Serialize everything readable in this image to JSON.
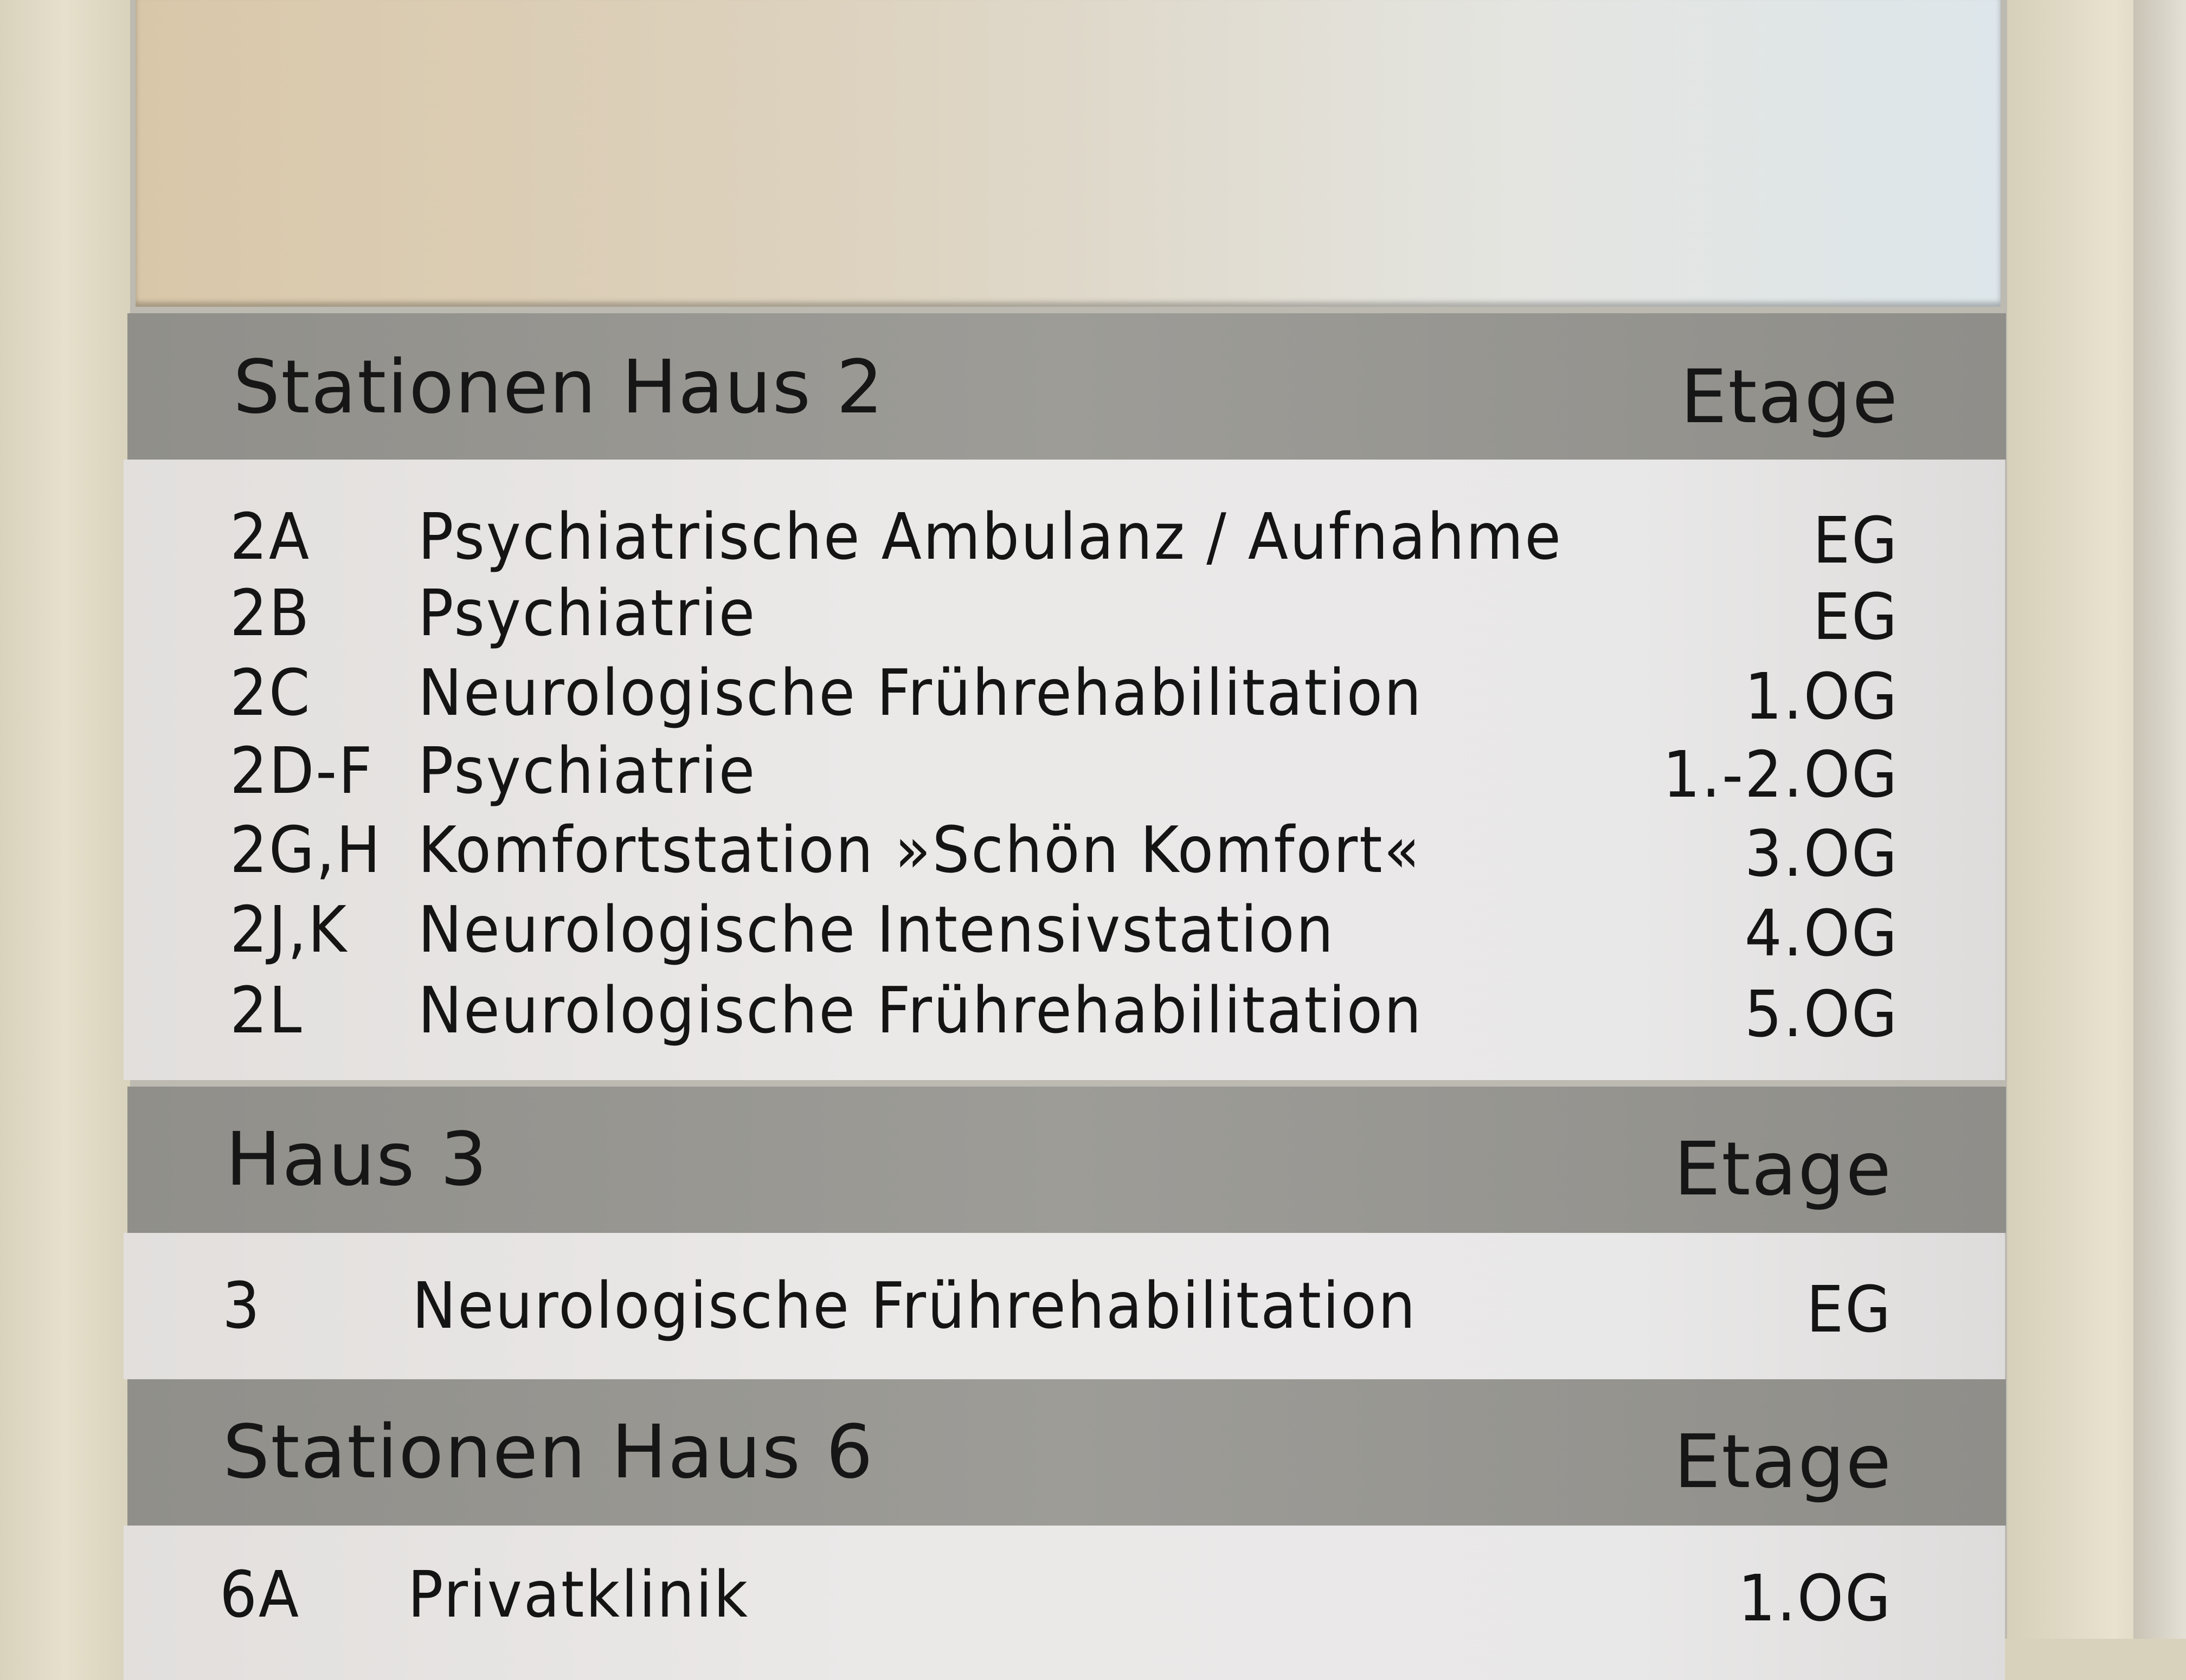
{
  "sections": [
    {
      "title": "Stationen Haus 2",
      "etage_label": "Etage",
      "rows": [
        {
          "code": "2A",
          "name": "Psychiatrische Ambulanz / Aufnahme",
          "floor": "EG"
        },
        {
          "code": "2B",
          "name": "Psychiatrie",
          "floor": "EG"
        },
        {
          "code": "2C",
          "name": "Neurologische Frührehabilitation",
          "floor": "1.OG"
        },
        {
          "code": "2D-F",
          "name": "Psychiatrie",
          "floor": "1.-2.OG"
        },
        {
          "code": "2G,H",
          "name": "Komfortstation »Schön Komfort«",
          "floor": "3.OG"
        },
        {
          "code": "2J,K",
          "name": "Neurologische Intensivstation",
          "floor": "4.OG"
        },
        {
          "code": "2L",
          "name": "Neurologische Frührehabilitation",
          "floor": "5.OG"
        }
      ]
    },
    {
      "title": "Haus 3",
      "etage_label": "Etage",
      "rows": [
        {
          "code": "3",
          "name": "Neurologische Frührehabilitation",
          "floor": "EG"
        }
      ]
    },
    {
      "title": "Stationen Haus 6",
      "etage_label": "Etage",
      "rows": [
        {
          "code": "6A",
          "name": "Privatklinik",
          "floor": "1.OG"
        }
      ]
    }
  ]
}
